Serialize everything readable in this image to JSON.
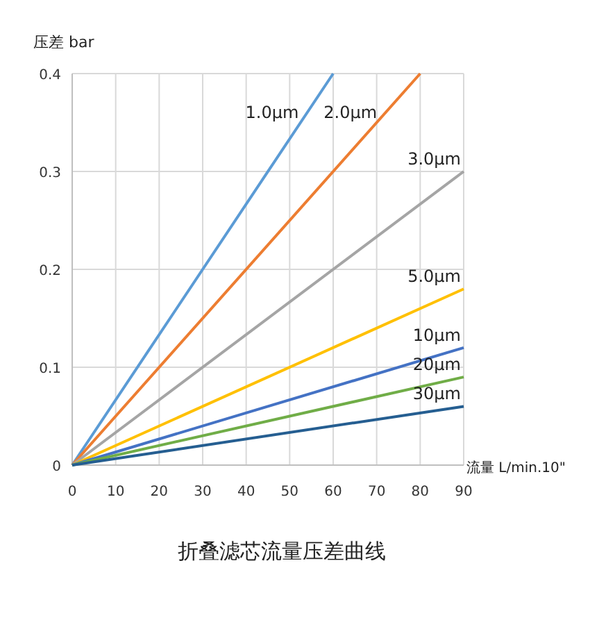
{
  "chart_data": {
    "type": "line",
    "title": "折叠滤芯流量压差曲线",
    "xlabel": "流量 L/min.10\"",
    "ylabel": "压差 bar",
    "xlim": [
      0,
      90
    ],
    "xticks": [
      0,
      10,
      20,
      30,
      40,
      50,
      60,
      70,
      80,
      90
    ],
    "ylim": [
      0,
      0.4
    ],
    "yticks": [
      0,
      0.1,
      0.2,
      0.3,
      0.4
    ],
    "grid": true,
    "legend": false,
    "marker": "none",
    "line_style": "solid",
    "series": [
      {
        "name": "1.0μm",
        "color": "#5b9bd5",
        "x": [
          0,
          60
        ],
        "values": [
          0,
          0.4
        ]
      },
      {
        "name": "2.0μm",
        "color": "#ed7d31",
        "x": [
          0,
          80
        ],
        "values": [
          0,
          0.4
        ]
      },
      {
        "name": "3.0μm",
        "color": "#a5a5a5",
        "x": [
          0,
          90
        ],
        "values": [
          0,
          0.3
        ]
      },
      {
        "name": "5.0μm",
        "color": "#ffc000",
        "x": [
          0,
          90
        ],
        "values": [
          0,
          0.18
        ]
      },
      {
        "name": "10μm",
        "color": "#4472c4",
        "x": [
          0,
          90
        ],
        "values": [
          0,
          0.12
        ]
      },
      {
        "name": "20μm",
        "color": "#70ad47",
        "x": [
          0,
          90
        ],
        "values": [
          0,
          0.09
        ]
      },
      {
        "name": "30μm",
        "color": "#255e91",
        "x": [
          0,
          90
        ],
        "values": [
          0,
          0.06
        ]
      }
    ]
  }
}
